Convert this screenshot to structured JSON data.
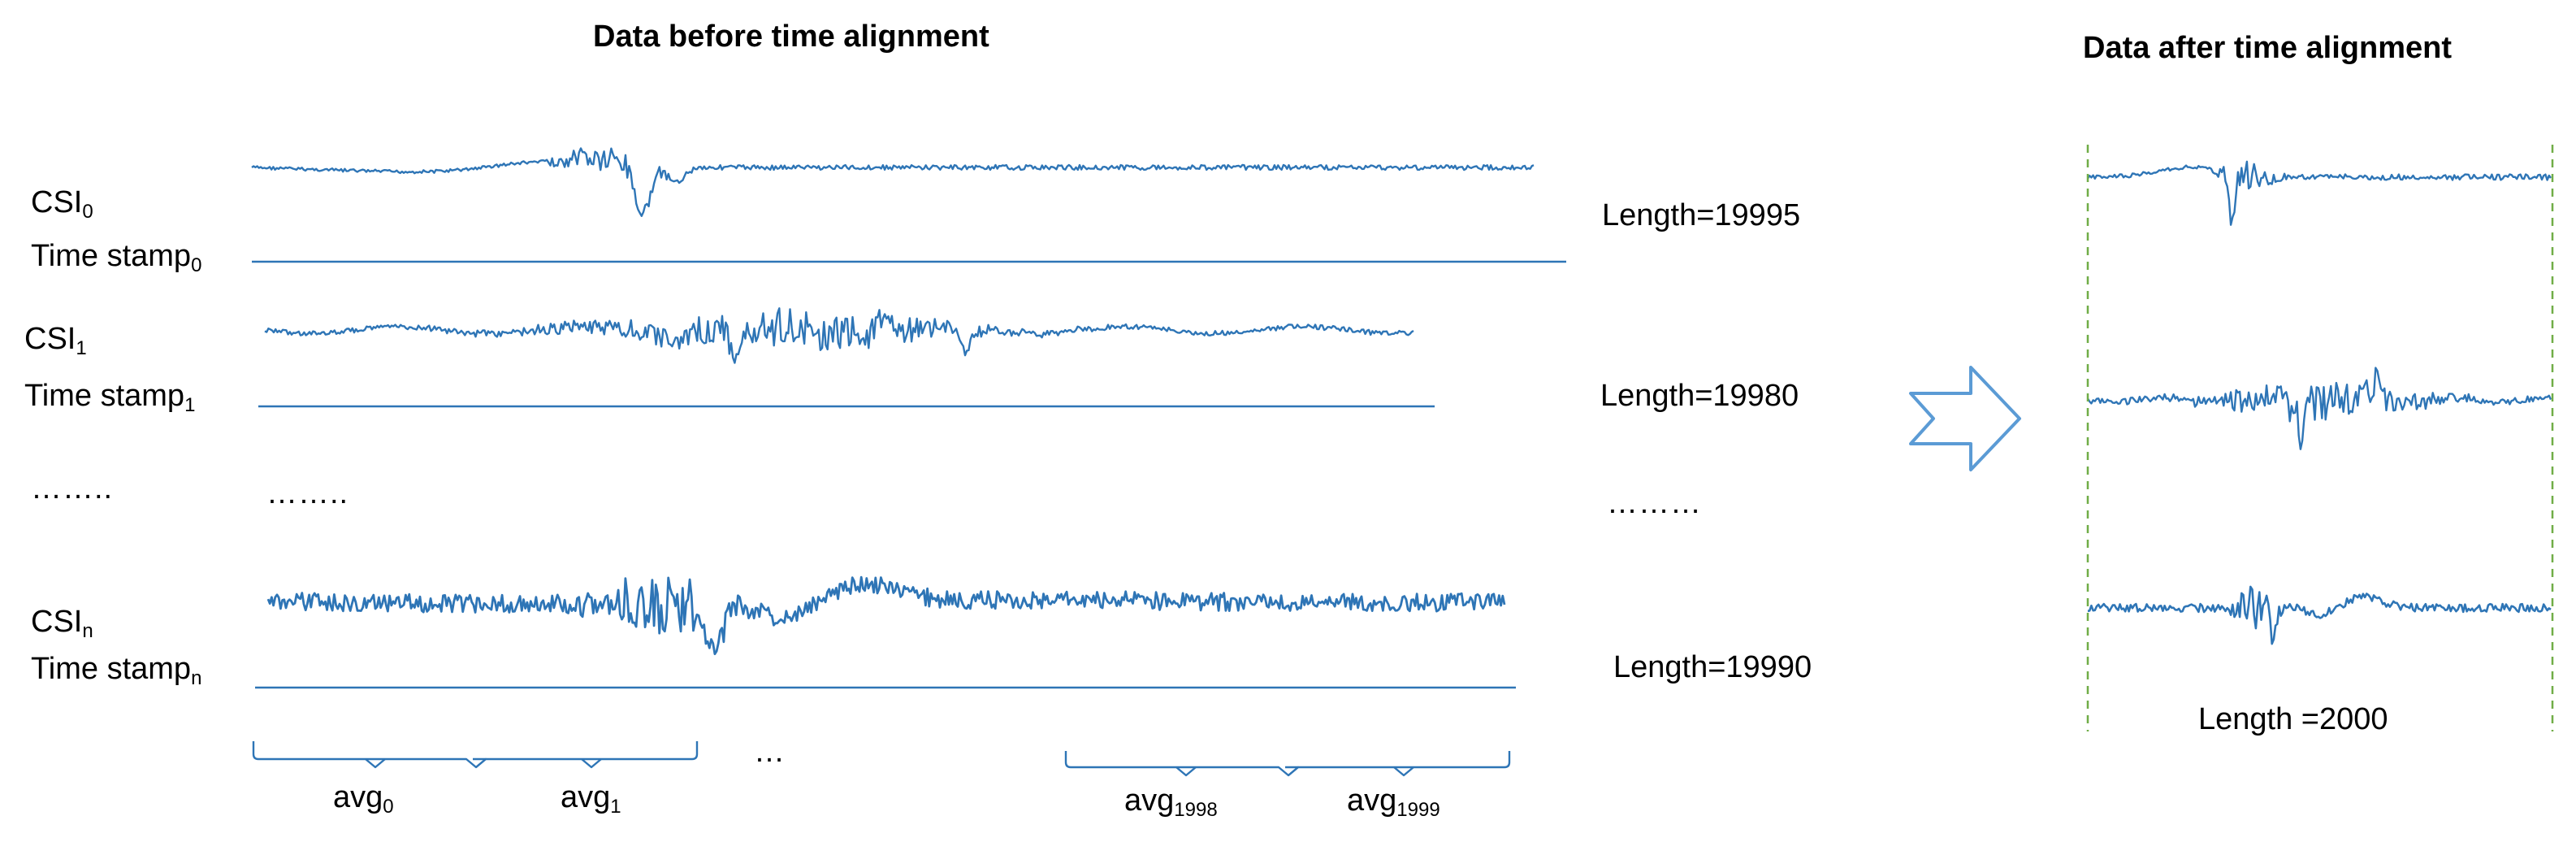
{
  "titles": {
    "before": "Data before time alignment",
    "after": "Data after time alignment"
  },
  "rows": [
    {
      "csi": "CSI",
      "csi_sub": "0",
      "ts": "Time stamp",
      "ts_sub": "0",
      "length": "Length=19995"
    },
    {
      "csi": "CSI",
      "csi_sub": "1",
      "ts": "Time stamp",
      "ts_sub": "1",
      "length": "Length=19980"
    },
    {
      "csi": "CSI",
      "csi_sub": "n",
      "ts": "Time stamp",
      "ts_sub": "n",
      "length": "Length=19990"
    }
  ],
  "ellipsis": {
    "left": "……..",
    "middle": "……..",
    "length": "………",
    "brace": "…"
  },
  "averages": [
    {
      "base": "avg",
      "sub": "0"
    },
    {
      "base": "avg",
      "sub": "1"
    },
    {
      "base": "avg",
      "sub": "1998"
    },
    {
      "base": "avg",
      "sub": "1999"
    }
  ],
  "after_length": "Length =2000",
  "colors": {
    "signal": "#2e75b6",
    "baseline": "#2e75b6",
    "arrow": "#5b9bd5",
    "guide": "#70ad47"
  }
}
